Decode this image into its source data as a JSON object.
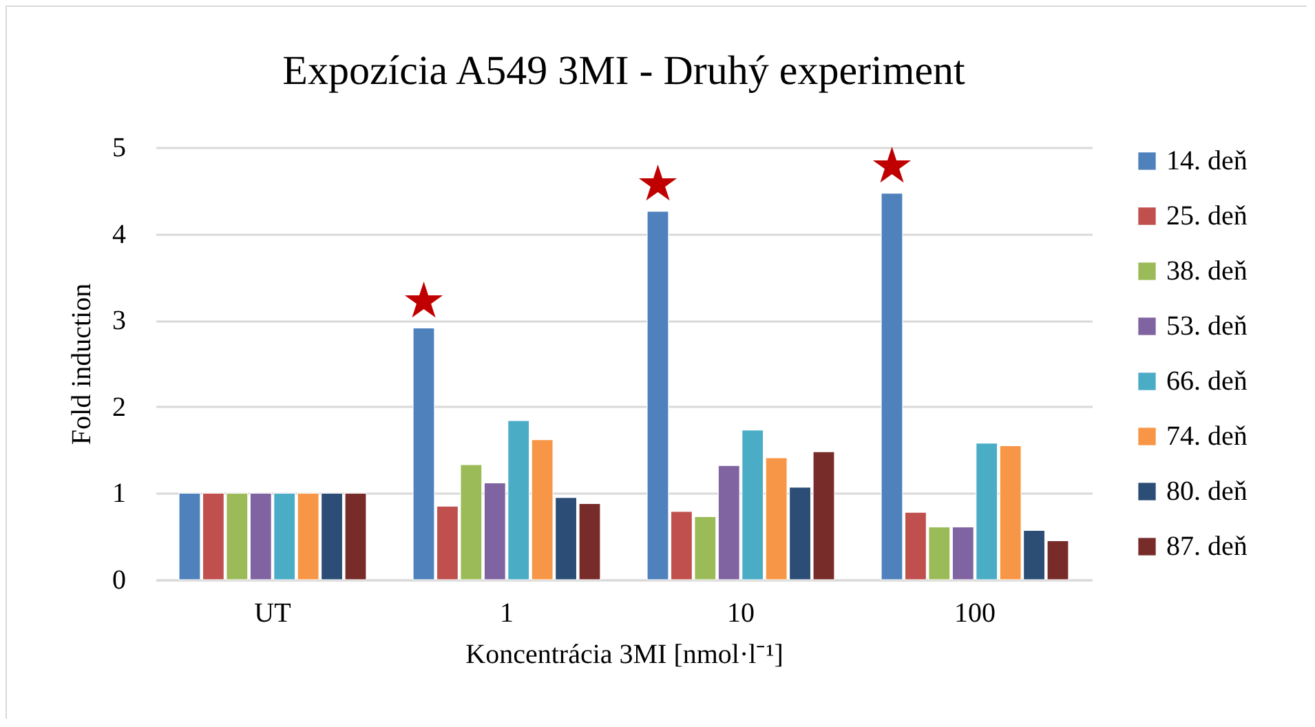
{
  "chart_data": {
    "type": "bar",
    "title": "Expozícia A549 3MI - Druhý experiment",
    "xlabel": "Koncentrácia 3MI [nmol·l⁻¹]",
    "ylabel": "Fold induction",
    "categories": [
      "UT",
      "1",
      "10",
      "100"
    ],
    "series": [
      {
        "name": "14. deň",
        "color": "#4f81bd",
        "values": [
          1,
          2.91,
          4.26,
          4.47
        ]
      },
      {
        "name": "25. deň",
        "color": "#c0504d",
        "values": [
          1,
          0.85,
          0.79,
          0.78
        ]
      },
      {
        "name": "38. deň",
        "color": "#9bbb59",
        "values": [
          1,
          1.33,
          0.73,
          0.61
        ]
      },
      {
        "name": "53. deň",
        "color": "#8064a2",
        "values": [
          1,
          1.12,
          1.32,
          0.61
        ]
      },
      {
        "name": "66. deň",
        "color": "#4bacc6",
        "values": [
          1,
          1.84,
          1.73,
          1.58
        ]
      },
      {
        "name": "74. deň",
        "color": "#f79646",
        "values": [
          1,
          1.62,
          1.41,
          1.55
        ]
      },
      {
        "name": "80. deň",
        "color": "#2c4d75",
        "values": [
          1,
          0.95,
          1.07,
          0.57
        ]
      },
      {
        "name": "87. deň",
        "color": "#772c2a",
        "values": [
          1,
          0.88,
          1.48,
          0.45
        ]
      }
    ],
    "ylim": [
      0,
      5
    ],
    "yticks": [
      0,
      1,
      2,
      3,
      4,
      5
    ],
    "grid": "y",
    "legend": "right",
    "annotations": [
      "★",
      "★",
      "★"
    ]
  }
}
